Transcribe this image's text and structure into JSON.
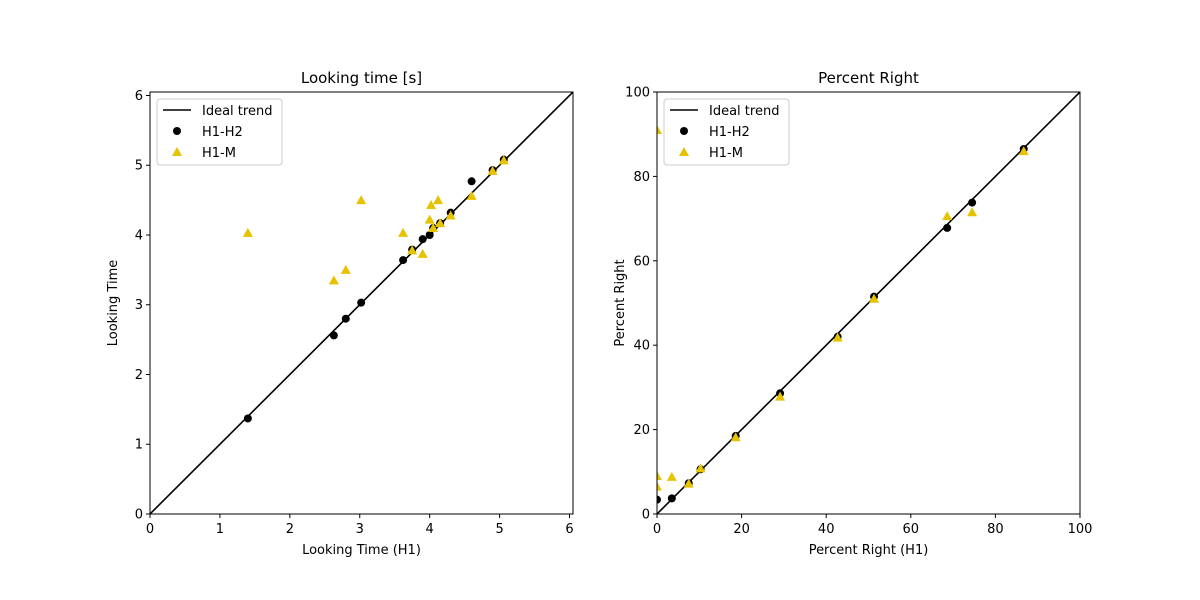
{
  "chart_data": [
    {
      "type": "scatter",
      "title": "Looking time [s]",
      "xlabel": "Looking Time (H1)",
      "ylabel": "Looking Time",
      "xlim": [
        0,
        6.05
      ],
      "ylim": [
        0,
        6.05
      ],
      "xticks": [
        0,
        1,
        2,
        3,
        4,
        5,
        6
      ],
      "yticks": [
        0,
        1,
        2,
        3,
        4,
        5,
        6
      ],
      "legend_position": "top-left",
      "ideal_line": {
        "name": "Ideal trend",
        "x": [
          0,
          6.05
        ],
        "y": [
          0,
          6.05
        ],
        "color": "#000000"
      },
      "series": [
        {
          "name": "H1-H2",
          "marker": "circle",
          "color": "#000000",
          "x": [
            1.4,
            2.63,
            2.8,
            3.02,
            3.62,
            3.75,
            3.9,
            4.0,
            4.05,
            4.15,
            4.3,
            4.6,
            4.9,
            5.06
          ],
          "y": [
            1.37,
            2.56,
            2.8,
            3.03,
            3.64,
            3.79,
            3.94,
            4.0,
            4.1,
            4.17,
            4.32,
            4.77,
            4.93,
            5.08
          ]
        },
        {
          "name": "H1-M",
          "marker": "triangle",
          "color": "#e6c200",
          "x": [
            1.4,
            2.63,
            2.8,
            3.02,
            3.62,
            3.75,
            3.9,
            4.0,
            4.02,
            4.05,
            4.12,
            4.15,
            4.3,
            4.6,
            4.9,
            5.06
          ],
          "y": [
            4.03,
            3.35,
            3.5,
            4.5,
            4.03,
            3.78,
            3.73,
            4.22,
            4.43,
            4.1,
            4.5,
            4.17,
            4.28,
            4.56,
            4.92,
            5.07
          ]
        }
      ]
    },
    {
      "type": "scatter",
      "title": "Percent Right",
      "xlabel": "Percent Right (H1)",
      "ylabel": "Percent Right",
      "xlim": [
        0,
        100
      ],
      "ylim": [
        0,
        100
      ],
      "xticks": [
        0,
        20,
        40,
        60,
        80,
        100
      ],
      "yticks": [
        0,
        20,
        40,
        60,
        80,
        100
      ],
      "legend_position": "top-left",
      "ideal_line": {
        "name": "Ideal trend",
        "x": [
          0,
          100
        ],
        "y": [
          0,
          100
        ],
        "color": "#000000"
      },
      "series": [
        {
          "name": "H1-H2",
          "marker": "circle",
          "color": "#000000",
          "x": [
            0,
            3.5,
            7.5,
            10.3,
            18.6,
            29.1,
            42.7,
            51.3,
            68.6,
            74.5,
            86.7
          ],
          "y": [
            3.4,
            3.7,
            7.3,
            10.6,
            18.5,
            28.6,
            42.0,
            51.5,
            67.8,
            73.8,
            86.5
          ]
        },
        {
          "name": "H1-M",
          "marker": "triangle",
          "color": "#e6c200",
          "x": [
            0,
            0,
            0,
            3.5,
            7.5,
            10.3,
            18.6,
            29.1,
            42.7,
            51.3,
            68.6,
            74.5,
            86.7
          ],
          "y": [
            91.0,
            9.0,
            6.5,
            8.8,
            7.2,
            10.8,
            18.2,
            27.8,
            41.8,
            51.0,
            70.6,
            71.5,
            86.0
          ]
        }
      ]
    }
  ]
}
